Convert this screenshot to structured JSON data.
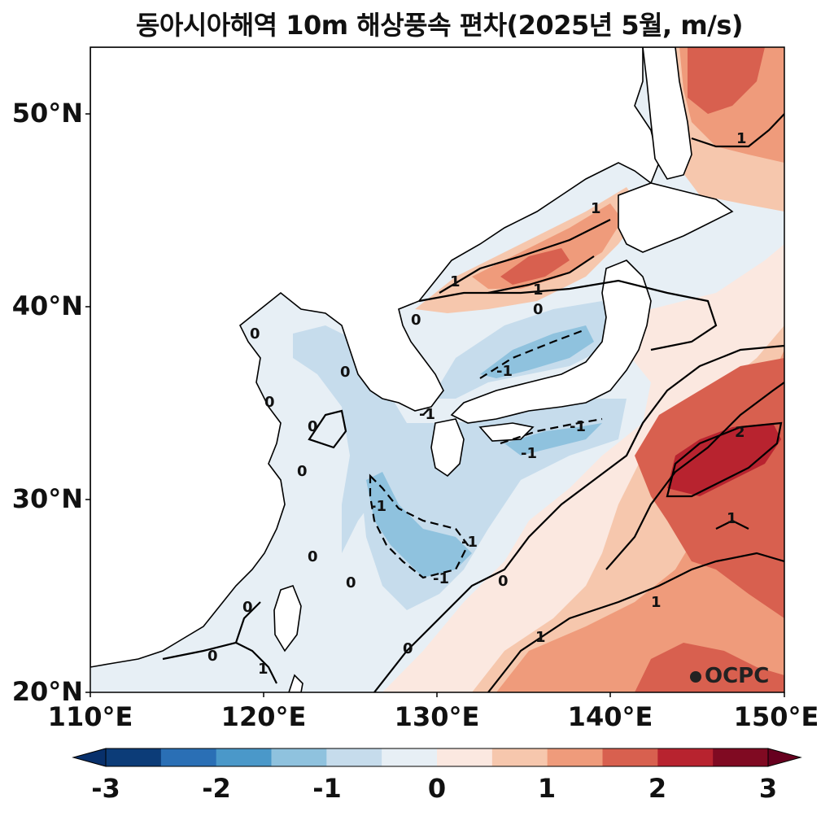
{
  "title": "동아시아해역 10m 해상풍속 편차(2025년 5월, m/s)",
  "watermark": "OCPC",
  "map": {
    "lon_range": [
      110,
      150
    ],
    "lat_range": [
      20,
      53.5
    ],
    "x_ticks": [
      "110°E",
      "120°E",
      "130°E",
      "140°E",
      "150°E"
    ],
    "y_ticks": [
      "20°N",
      "30°N",
      "40°N",
      "50°N"
    ],
    "contour_labels": [
      "0",
      "0",
      "0",
      "0",
      "0",
      "0",
      "0",
      "0",
      "0",
      "0",
      "0",
      "0",
      "0",
      "1",
      "1",
      "1",
      "1",
      "1",
      "1",
      "1",
      "1",
      "-1",
      "-1",
      "-1",
      "-1",
      "-1",
      "-1",
      "2",
      "-1"
    ]
  },
  "colorbar": {
    "ticks": [
      "-3",
      "-2",
      "-1",
      "0",
      "1",
      "2",
      "3"
    ],
    "colors": [
      "#0c3c78",
      "#2a6fb5",
      "#4a98c9",
      "#8fc2de",
      "#c6dcec",
      "#e7eff5",
      "#fbe8e0",
      "#f6c7ad",
      "#ef9b7b",
      "#d8604f",
      "#b8232f",
      "#800a22"
    ],
    "extend_left_color": "#08306b",
    "extend_right_color": "#67001f"
  }
}
